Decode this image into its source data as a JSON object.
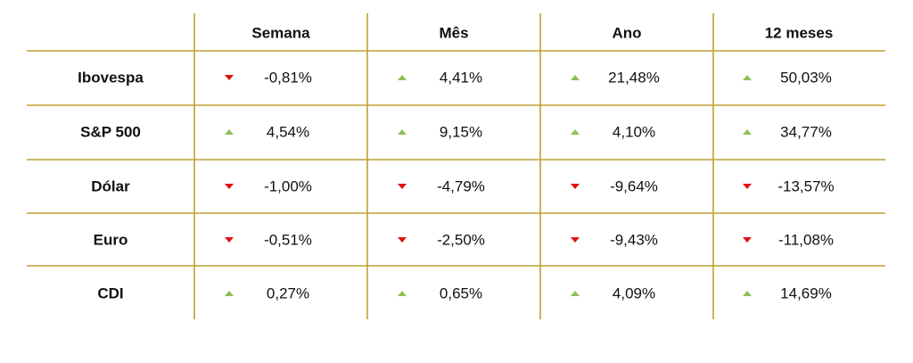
{
  "table": {
    "header": [
      "Semana",
      "Mês",
      "Ano",
      "12 meses"
    ],
    "rows": [
      [
        "Ibovespa",
        "-0,81%",
        "4,41%",
        "21,48%",
        "50,03%"
      ],
      [
        "S&P 500",
        "4,54%",
        "9,15%",
        "4,10%",
        "34,77%"
      ],
      [
        "Dólar",
        "-1,00%",
        "-4,79%",
        "-9,64%",
        "-13,57%"
      ],
      [
        "Euro",
        "-0,51%",
        "-2,50%",
        "-9,43%",
        "-11,08%"
      ],
      [
        "CDI",
        "0,27%",
        "0,65%",
        "4,09%",
        "14,69%"
      ]
    ]
  }
}
